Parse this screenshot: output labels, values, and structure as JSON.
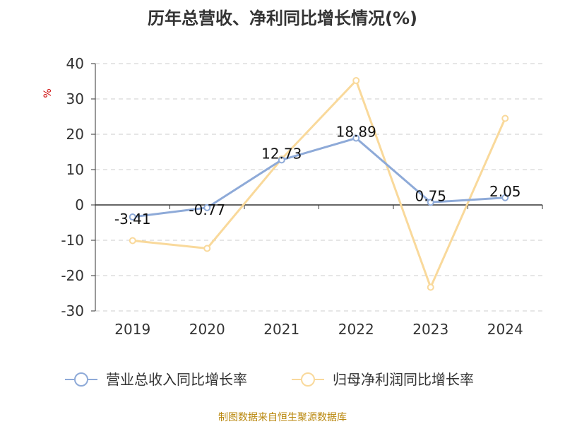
{
  "chart_data": {
    "type": "line",
    "title": "历年总营收、净利同比增长情况(%)",
    "ylabel": "%",
    "categories": [
      "2019",
      "2020",
      "2021",
      "2022",
      "2023",
      "2024"
    ],
    "ylim": [
      -30,
      40
    ],
    "yticks": [
      40,
      30,
      20,
      10,
      0,
      -10,
      -20,
      -30
    ],
    "ytick_labels": [
      "40",
      "30",
      "20",
      "10",
      "0",
      "-10",
      "-20",
      "-30"
    ],
    "grid": true,
    "legend_position": "bottom",
    "series": [
      {
        "name": "营业总收入同比增长率",
        "color": "#8eaad8",
        "values": [
          -3.41,
          -0.77,
          12.73,
          18.89,
          0.75,
          2.05
        ],
        "labels": [
          "-3.41",
          "-0.77",
          "12.73",
          "18.89",
          "0.75",
          "2.05"
        ]
      },
      {
        "name": "归母净利润同比增长率",
        "color": "#f9d99b",
        "values": [
          -10.1,
          -12.3,
          13.0,
          35.2,
          -23.3,
          24.5
        ]
      }
    ],
    "source": "制图数据来自恒生聚源数据库",
    "ylabel_color": "#cc0000",
    "source_color": "#b8860b"
  }
}
